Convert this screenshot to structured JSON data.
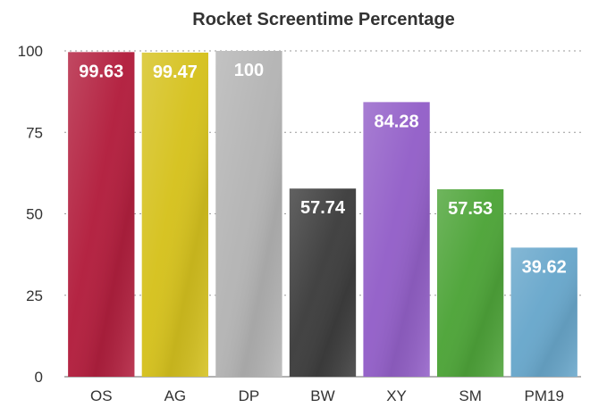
{
  "chart_data": {
    "type": "bar",
    "title": "Rocket Screentime Percentage",
    "xlabel": "",
    "ylabel": "",
    "categories": [
      "OS",
      "AG",
      "DP",
      "BW",
      "XY",
      "SM",
      "PM19"
    ],
    "values": [
      99.63,
      99.47,
      100,
      57.74,
      84.28,
      57.53,
      39.62
    ],
    "value_labels": [
      "99.63",
      "99.47",
      "100",
      "57.74",
      "84.28",
      "57.53",
      "39.62"
    ],
    "colors": [
      "#b3203f",
      "#d6c21f",
      "#b5b5b5",
      "#3f3f3f",
      "#9461c9",
      "#4fa53a",
      "#6aa8cc"
    ],
    "ylim": [
      0,
      100
    ],
    "yticks": [
      0,
      25,
      50,
      75,
      100
    ],
    "grid": true,
    "legend": "none"
  }
}
